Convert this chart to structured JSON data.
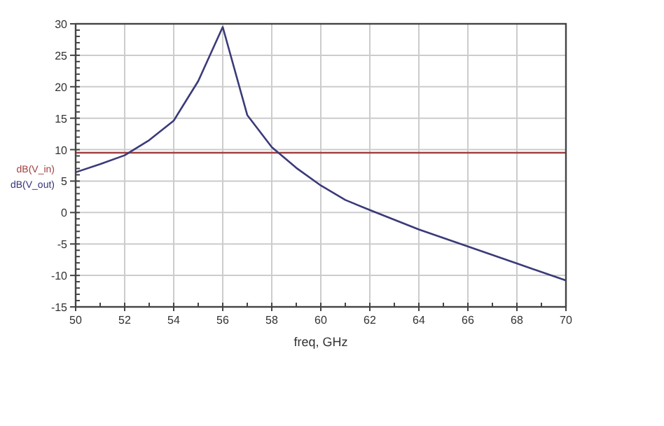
{
  "chart_data": {
    "type": "line",
    "xlabel": "freq, GHz",
    "ylabel": "dB(V_out)",
    "x": [
      50,
      51,
      52,
      53,
      54,
      55,
      56,
      57,
      58,
      59,
      60,
      61,
      62,
      64,
      66,
      68,
      70
    ],
    "series": [
      {
        "color": "#3a3a7a",
        "values": [
          6.4,
          7.7,
          9.1,
          11.5,
          14.6,
          20.9,
          29.5,
          15.5,
          10.4,
          7.1,
          4.3,
          2.0,
          0.4,
          -2.7,
          -5.4,
          -8.1,
          -10.8
        ]
      }
    ],
    "ref_lines": [
      {
        "axis": "y",
        "value": 9.5,
        "label": "dB(V_in)",
        "color": "#a04040"
      }
    ],
    "xlim": [
      50,
      70
    ],
    "xticks": [
      50,
      52,
      54,
      56,
      58,
      60,
      62,
      64,
      66,
      68,
      70
    ],
    "ylim": [
      -15,
      30
    ],
    "yticks": [
      -15,
      -10,
      -5,
      0,
      5,
      10,
      15,
      20,
      25,
      30
    ],
    "grid": true,
    "marker": "none",
    "line_style": "solid"
  }
}
